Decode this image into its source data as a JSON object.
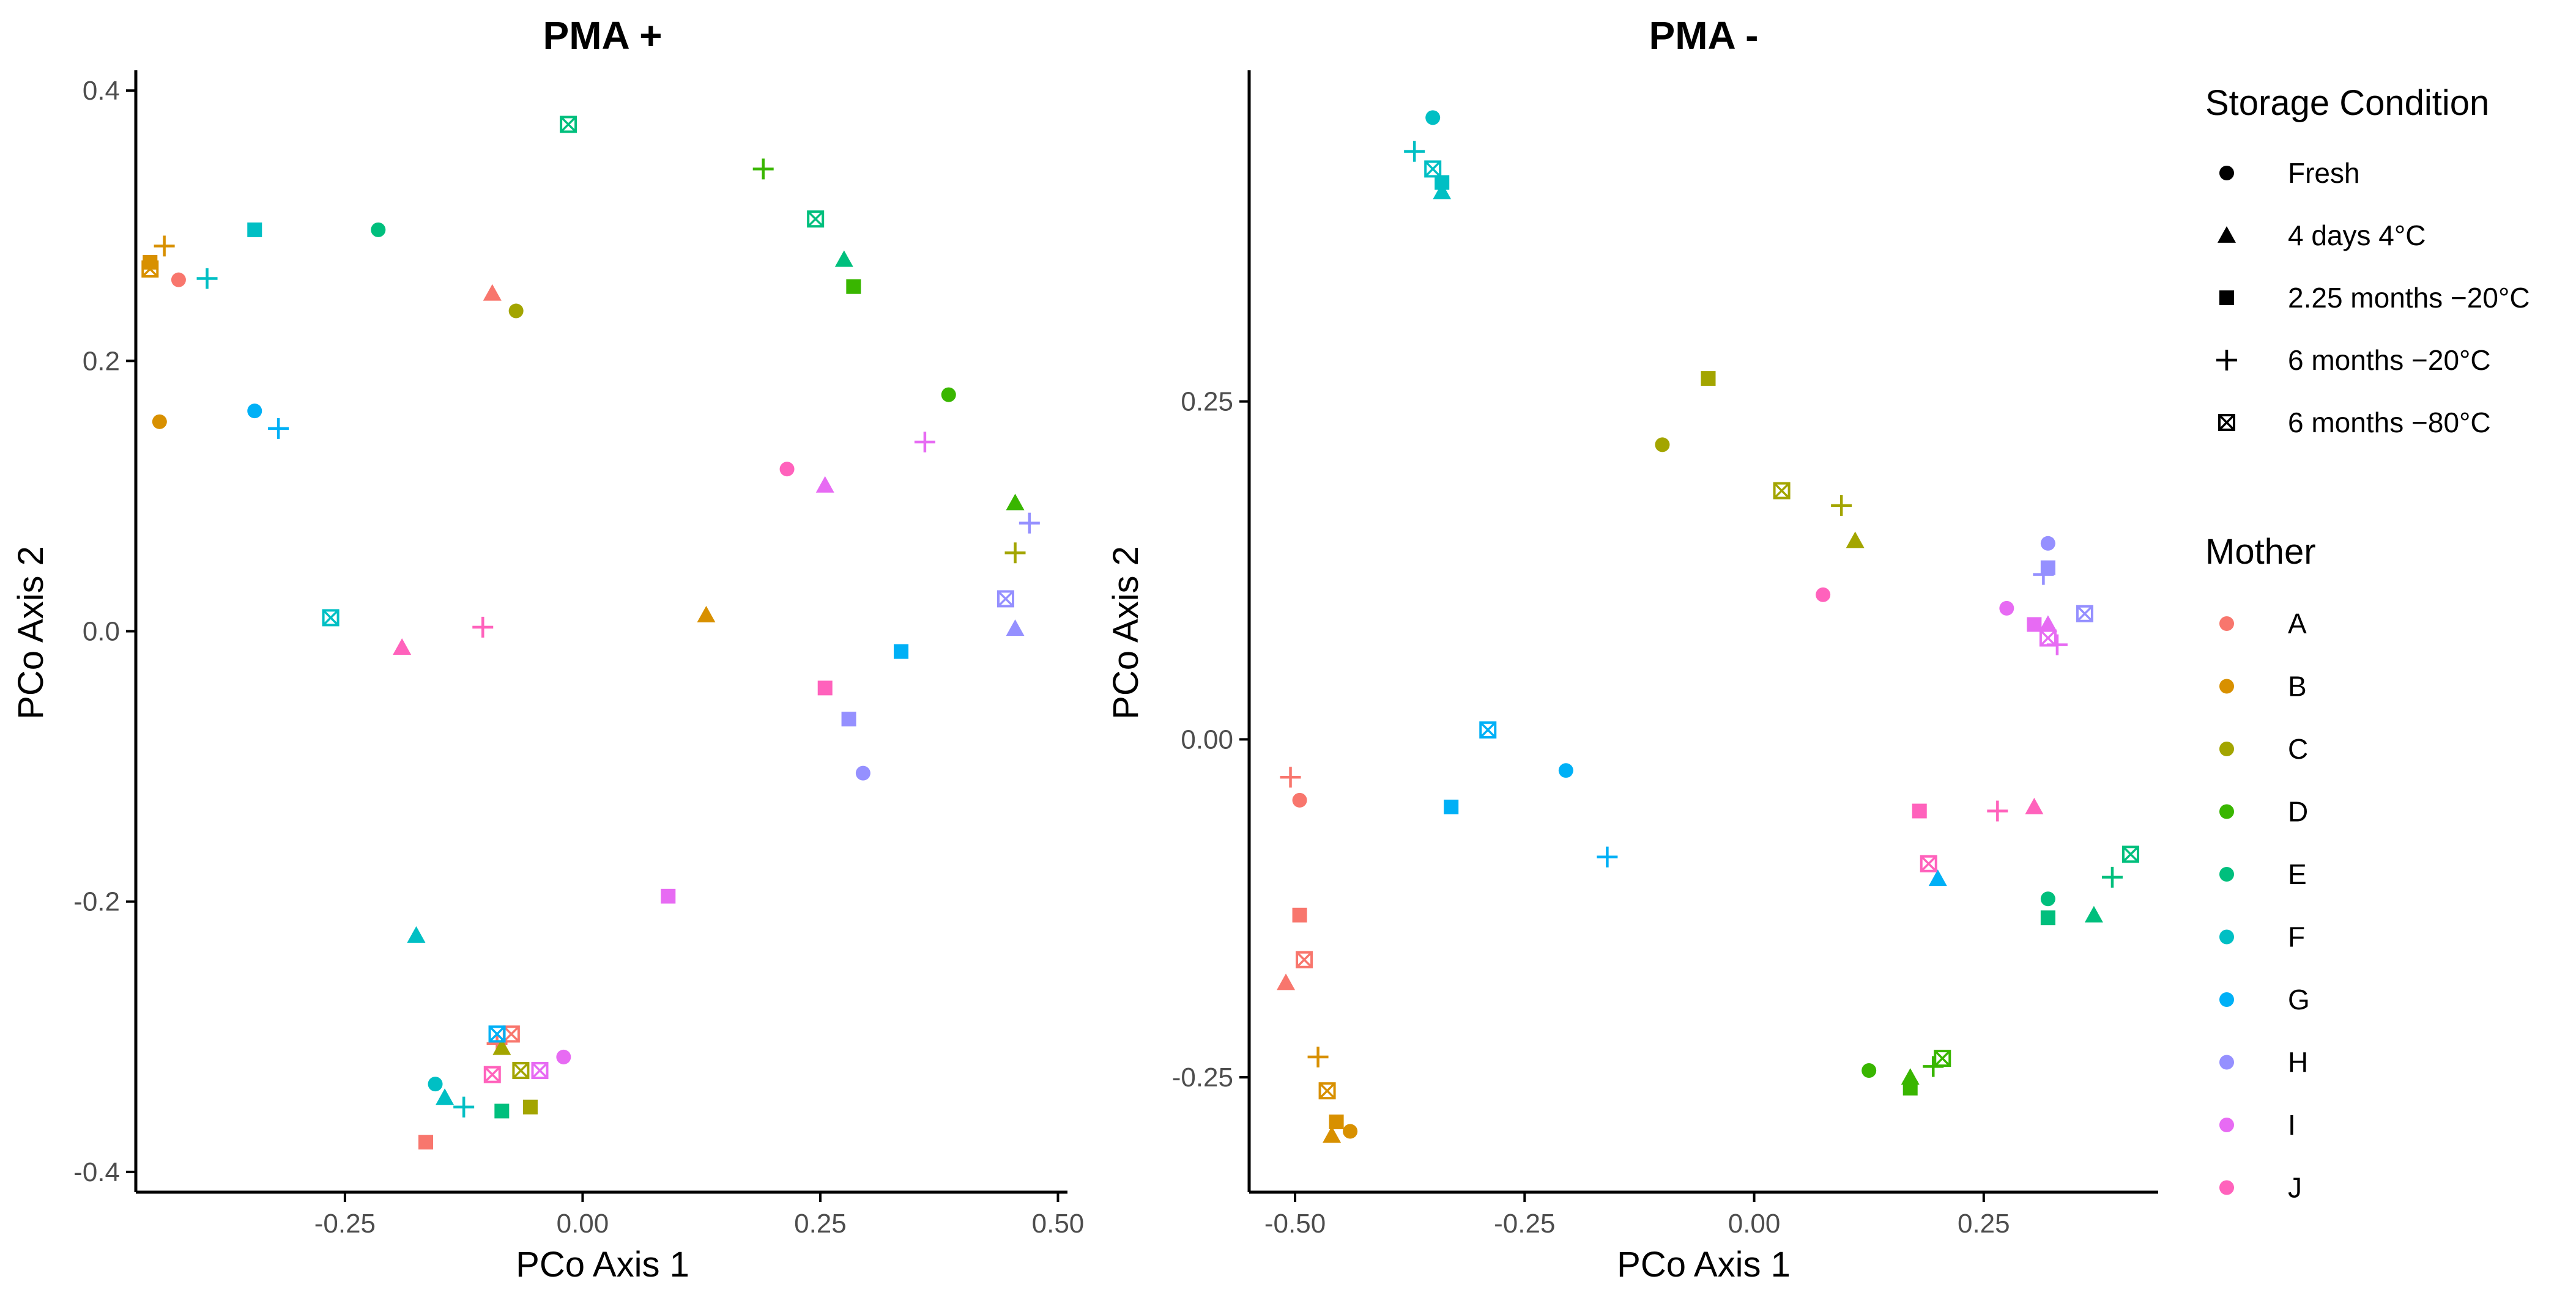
{
  "chart_data": [
    {
      "type": "scatter",
      "title": "PMA +",
      "xlabel": "PCo Axis 1",
      "ylabel": "PCo Axis 2",
      "xlim": [
        -0.47,
        0.51
      ],
      "ylim": [
        -0.415,
        0.415
      ],
      "xticks": [
        -0.25,
        0.0,
        0.25,
        0.5
      ],
      "xtick_labels": [
        "-0.25",
        "0.00",
        "0.25",
        "0.50"
      ],
      "yticks": [
        -0.4,
        -0.2,
        0.0,
        0.2,
        0.4
      ],
      "ytick_labels": [
        "-0.4",
        "-0.2",
        "0.0",
        "0.2",
        "0.4"
      ],
      "grid": false,
      "points": [
        {
          "x": -0.095,
          "y": 0.25,
          "mother": "A",
          "condition": "4 days 4°C"
        },
        {
          "x": -0.425,
          "y": 0.26,
          "mother": "A",
          "condition": "Fresh"
        },
        {
          "x": -0.165,
          "y": -0.378,
          "mother": "A",
          "condition": "2.25 months −20°C"
        },
        {
          "x": -0.09,
          "y": -0.305,
          "mother": "A",
          "condition": "6 months −20°C"
        },
        {
          "x": -0.075,
          "y": -0.298,
          "mother": "A",
          "condition": "6 months −80°C"
        },
        {
          "x": -0.445,
          "y": 0.155,
          "mother": "B",
          "condition": "Fresh"
        },
        {
          "x": -0.44,
          "y": 0.285,
          "mother": "B",
          "condition": "6 months −20°C"
        },
        {
          "x": -0.455,
          "y": 0.273,
          "mother": "B",
          "condition": "2.25 months −20°C"
        },
        {
          "x": -0.455,
          "y": 0.268,
          "mother": "B",
          "condition": "6 months −80°C"
        },
        {
          "x": 0.13,
          "y": 0.012,
          "mother": "B",
          "condition": "4 days 4°C"
        },
        {
          "x": -0.07,
          "y": 0.237,
          "mother": "C",
          "condition": "Fresh"
        },
        {
          "x": 0.455,
          "y": 0.058,
          "mother": "C",
          "condition": "6 months −20°C"
        },
        {
          "x": -0.085,
          "y": -0.308,
          "mother": "C",
          "condition": "4 days 4°C"
        },
        {
          "x": -0.065,
          "y": -0.325,
          "mother": "C",
          "condition": "6 months −80°C"
        },
        {
          "x": -0.055,
          "y": -0.352,
          "mother": "C",
          "condition": "2.25 months −20°C"
        },
        {
          "x": 0.19,
          "y": 0.342,
          "mother": "D",
          "condition": "6 months −20°C"
        },
        {
          "x": 0.285,
          "y": 0.255,
          "mother": "D",
          "condition": "2.25 months −20°C"
        },
        {
          "x": 0.385,
          "y": 0.175,
          "mother": "D",
          "condition": "Fresh"
        },
        {
          "x": 0.455,
          "y": 0.095,
          "mother": "D",
          "condition": "4 days 4°C"
        },
        {
          "x": -0.015,
          "y": 0.375,
          "mother": "E",
          "condition": "6 months −80°C"
        },
        {
          "x": 0.245,
          "y": 0.305,
          "mother": "E",
          "condition": "6 months −80°C"
        },
        {
          "x": 0.275,
          "y": 0.275,
          "mother": "E",
          "condition": "4 days 4°C"
        },
        {
          "x": -0.215,
          "y": 0.297,
          "mother": "E",
          "condition": "Fresh"
        },
        {
          "x": -0.085,
          "y": -0.355,
          "mother": "E",
          "condition": "2.25 months −20°C"
        },
        {
          "x": -0.345,
          "y": 0.297,
          "mother": "F",
          "condition": "2.25 months −20°C"
        },
        {
          "x": -0.395,
          "y": 0.261,
          "mother": "F",
          "condition": "6 months −20°C"
        },
        {
          "x": -0.265,
          "y": 0.01,
          "mother": "F",
          "condition": "6 months −80°C"
        },
        {
          "x": -0.175,
          "y": -0.225,
          "mother": "F",
          "condition": "4 days 4°C"
        },
        {
          "x": -0.155,
          "y": -0.335,
          "mother": "F",
          "condition": "Fresh"
        },
        {
          "x": -0.145,
          "y": -0.345,
          "mother": "F",
          "condition": "4 days 4°C"
        },
        {
          "x": -0.125,
          "y": -0.352,
          "mother": "F",
          "condition": "6 months −20°C"
        },
        {
          "x": -0.345,
          "y": 0.163,
          "mother": "G",
          "condition": "Fresh"
        },
        {
          "x": -0.32,
          "y": 0.15,
          "mother": "G",
          "condition": "6 months −20°C"
        },
        {
          "x": 0.335,
          "y": -0.015,
          "mother": "G",
          "condition": "2.25 months −20°C"
        },
        {
          "x": -0.09,
          "y": -0.298,
          "mother": "G",
          "condition": "6 months −80°C"
        },
        {
          "x": 0.47,
          "y": 0.08,
          "mother": "H",
          "condition": "6 months −20°C"
        },
        {
          "x": 0.445,
          "y": 0.024,
          "mother": "H",
          "condition": "6 months −80°C"
        },
        {
          "x": 0.455,
          "y": 0.002,
          "mother": "H",
          "condition": "4 days 4°C"
        },
        {
          "x": 0.28,
          "y": -0.065,
          "mother": "H",
          "condition": "2.25 months −20°C"
        },
        {
          "x": 0.295,
          "y": -0.105,
          "mother": "H",
          "condition": "Fresh"
        },
        {
          "x": 0.36,
          "y": 0.14,
          "mother": "I",
          "condition": "6 months −20°C"
        },
        {
          "x": 0.255,
          "y": 0.108,
          "mother": "I",
          "condition": "4 days 4°C"
        },
        {
          "x": 0.09,
          "y": -0.196,
          "mother": "I",
          "condition": "2.25 months −20°C"
        },
        {
          "x": -0.02,
          "y": -0.315,
          "mother": "I",
          "condition": "Fresh"
        },
        {
          "x": -0.045,
          "y": -0.325,
          "mother": "I",
          "condition": "6 months −80°C"
        },
        {
          "x": 0.215,
          "y": 0.12,
          "mother": "J",
          "condition": "Fresh"
        },
        {
          "x": -0.19,
          "y": -0.012,
          "mother": "J",
          "condition": "4 days 4°C"
        },
        {
          "x": -0.105,
          "y": 0.003,
          "mother": "J",
          "condition": "6 months −20°C"
        },
        {
          "x": 0.255,
          "y": -0.042,
          "mother": "J",
          "condition": "2.25 months −20°C"
        },
        {
          "x": -0.095,
          "y": -0.328,
          "mother": "J",
          "condition": "6 months −80°C"
        }
      ]
    },
    {
      "type": "scatter",
      "title": "PMA -",
      "xlabel": "PCo Axis 1",
      "ylabel": "PCo Axis 2",
      "xlim": [
        -0.55,
        0.44
      ],
      "ylim": [
        -0.335,
        0.495
      ],
      "xticks": [
        -0.5,
        -0.25,
        0.0,
        0.25
      ],
      "xtick_labels": [
        "-0.50",
        "-0.25",
        "0.00",
        "0.25"
      ],
      "yticks": [
        -0.25,
        0.0,
        0.25
      ],
      "ytick_labels": [
        "-0.25",
        "0.00",
        "0.25"
      ],
      "grid": false,
      "points": [
        {
          "x": -0.495,
          "y": -0.045,
          "mother": "A",
          "condition": "Fresh"
        },
        {
          "x": -0.505,
          "y": -0.028,
          "mother": "A",
          "condition": "6 months −20°C"
        },
        {
          "x": -0.495,
          "y": -0.13,
          "mother": "A",
          "condition": "2.25 months −20°C"
        },
        {
          "x": -0.49,
          "y": -0.163,
          "mother": "A",
          "condition": "6 months −80°C"
        },
        {
          "x": -0.51,
          "y": -0.18,
          "mother": "A",
          "condition": "4 days 4°C"
        },
        {
          "x": -0.475,
          "y": -0.235,
          "mother": "B",
          "condition": "6 months −20°C"
        },
        {
          "x": -0.465,
          "y": -0.26,
          "mother": "B",
          "condition": "6 months −80°C"
        },
        {
          "x": -0.455,
          "y": -0.283,
          "mother": "B",
          "condition": "2.25 months −20°C"
        },
        {
          "x": -0.44,
          "y": -0.29,
          "mother": "B",
          "condition": "Fresh"
        },
        {
          "x": -0.46,
          "y": -0.293,
          "mother": "B",
          "condition": "4 days 4°C"
        },
        {
          "x": -0.05,
          "y": 0.267,
          "mother": "C",
          "condition": "2.25 months −20°C"
        },
        {
          "x": -0.1,
          "y": 0.218,
          "mother": "C",
          "condition": "Fresh"
        },
        {
          "x": 0.03,
          "y": 0.184,
          "mother": "C",
          "condition": "6 months −80°C"
        },
        {
          "x": 0.095,
          "y": 0.173,
          "mother": "C",
          "condition": "6 months −20°C"
        },
        {
          "x": 0.11,
          "y": 0.147,
          "mother": "C",
          "condition": "4 days 4°C"
        },
        {
          "x": 0.125,
          "y": -0.245,
          "mother": "D",
          "condition": "Fresh"
        },
        {
          "x": 0.17,
          "y": -0.25,
          "mother": "D",
          "condition": "4 days 4°C"
        },
        {
          "x": 0.17,
          "y": -0.258,
          "mother": "D",
          "condition": "2.25 months −20°C"
        },
        {
          "x": 0.195,
          "y": -0.242,
          "mother": "D",
          "condition": "6 months −20°C"
        },
        {
          "x": 0.205,
          "y": -0.236,
          "mother": "D",
          "condition": "6 months −80°C"
        },
        {
          "x": 0.32,
          "y": -0.118,
          "mother": "E",
          "condition": "Fresh"
        },
        {
          "x": 0.32,
          "y": -0.132,
          "mother": "E",
          "condition": "2.25 months −20°C"
        },
        {
          "x": 0.37,
          "y": -0.13,
          "mother": "E",
          "condition": "4 days 4°C"
        },
        {
          "x": 0.39,
          "y": -0.102,
          "mother": "E",
          "condition": "6 months −20°C"
        },
        {
          "x": 0.41,
          "y": -0.085,
          "mother": "E",
          "condition": "6 months −80°C"
        },
        {
          "x": -0.35,
          "y": 0.46,
          "mother": "F",
          "condition": "Fresh"
        },
        {
          "x": -0.37,
          "y": 0.435,
          "mother": "F",
          "condition": "6 months −20°C"
        },
        {
          "x": -0.35,
          "y": 0.422,
          "mother": "F",
          "condition": "6 months −80°C"
        },
        {
          "x": -0.34,
          "y": 0.412,
          "mother": "F",
          "condition": "2.25 months −20°C"
        },
        {
          "x": -0.34,
          "y": 0.405,
          "mother": "F",
          "condition": "4 days 4°C"
        },
        {
          "x": -0.29,
          "y": 0.007,
          "mother": "G",
          "condition": "6 months −80°C"
        },
        {
          "x": -0.205,
          "y": -0.023,
          "mother": "G",
          "condition": "Fresh"
        },
        {
          "x": -0.33,
          "y": -0.05,
          "mother": "G",
          "condition": "2.25 months −20°C"
        },
        {
          "x": -0.16,
          "y": -0.087,
          "mother": "G",
          "condition": "6 months −20°C"
        },
        {
          "x": 0.2,
          "y": -0.103,
          "mother": "G",
          "condition": "4 days 4°C"
        },
        {
          "x": 0.32,
          "y": 0.145,
          "mother": "H",
          "condition": "Fresh"
        },
        {
          "x": 0.32,
          "y": 0.127,
          "mother": "H",
          "condition": "2.25 months −20°C"
        },
        {
          "x": 0.315,
          "y": 0.122,
          "mother": "H",
          "condition": "6 months −20°C"
        },
        {
          "x": 0.36,
          "y": 0.093,
          "mother": "H",
          "condition": "6 months −80°C"
        },
        {
          "x": 0.32,
          "y": 0.085,
          "mother": "H",
          "condition": "4 days 4°C"
        },
        {
          "x": 0.275,
          "y": 0.097,
          "mother": "I",
          "condition": "Fresh"
        },
        {
          "x": 0.305,
          "y": 0.085,
          "mother": "I",
          "condition": "2.25 months −20°C"
        },
        {
          "x": 0.32,
          "y": 0.085,
          "mother": "I",
          "condition": "4 days 4°C"
        },
        {
          "x": 0.32,
          "y": 0.075,
          "mother": "I",
          "condition": "6 months −80°C"
        },
        {
          "x": 0.33,
          "y": 0.07,
          "mother": "I",
          "condition": "6 months −20°C"
        },
        {
          "x": 0.075,
          "y": 0.107,
          "mother": "J",
          "condition": "Fresh"
        },
        {
          "x": 0.18,
          "y": -0.053,
          "mother": "J",
          "condition": "2.25 months −20°C"
        },
        {
          "x": 0.265,
          "y": -0.053,
          "mother": "J",
          "condition": "6 months −20°C"
        },
        {
          "x": 0.305,
          "y": -0.05,
          "mother": "J",
          "condition": "4 days 4°C"
        },
        {
          "x": 0.19,
          "y": -0.092,
          "mother": "J",
          "condition": "6 months −80°C"
        }
      ]
    }
  ],
  "legend": {
    "placement": "right",
    "storage_title": "Storage Condition",
    "storage_items": [
      {
        "label": "Fresh",
        "shape": "circle"
      },
      {
        "label": "4 days 4°C",
        "shape": "triangle"
      },
      {
        "label": "2.25 months −20°C",
        "shape": "square"
      },
      {
        "label": "6 months −20°C",
        "shape": "plus"
      },
      {
        "label": "6 months −80°C",
        "shape": "boxed-x"
      }
    ],
    "mother_title": "Mother",
    "mother_items": [
      {
        "label": "A",
        "color": "#F8766D"
      },
      {
        "label": "B",
        "color": "#D89000"
      },
      {
        "label": "C",
        "color": "#A3A500"
      },
      {
        "label": "D",
        "color": "#39B600"
      },
      {
        "label": "E",
        "color": "#00BF7D"
      },
      {
        "label": "F",
        "color": "#00BFC4"
      },
      {
        "label": "G",
        "color": "#00B0F6"
      },
      {
        "label": "H",
        "color": "#9590FF"
      },
      {
        "label": "I",
        "color": "#E76BF3"
      },
      {
        "label": "J",
        "color": "#FF62BC"
      }
    ]
  }
}
